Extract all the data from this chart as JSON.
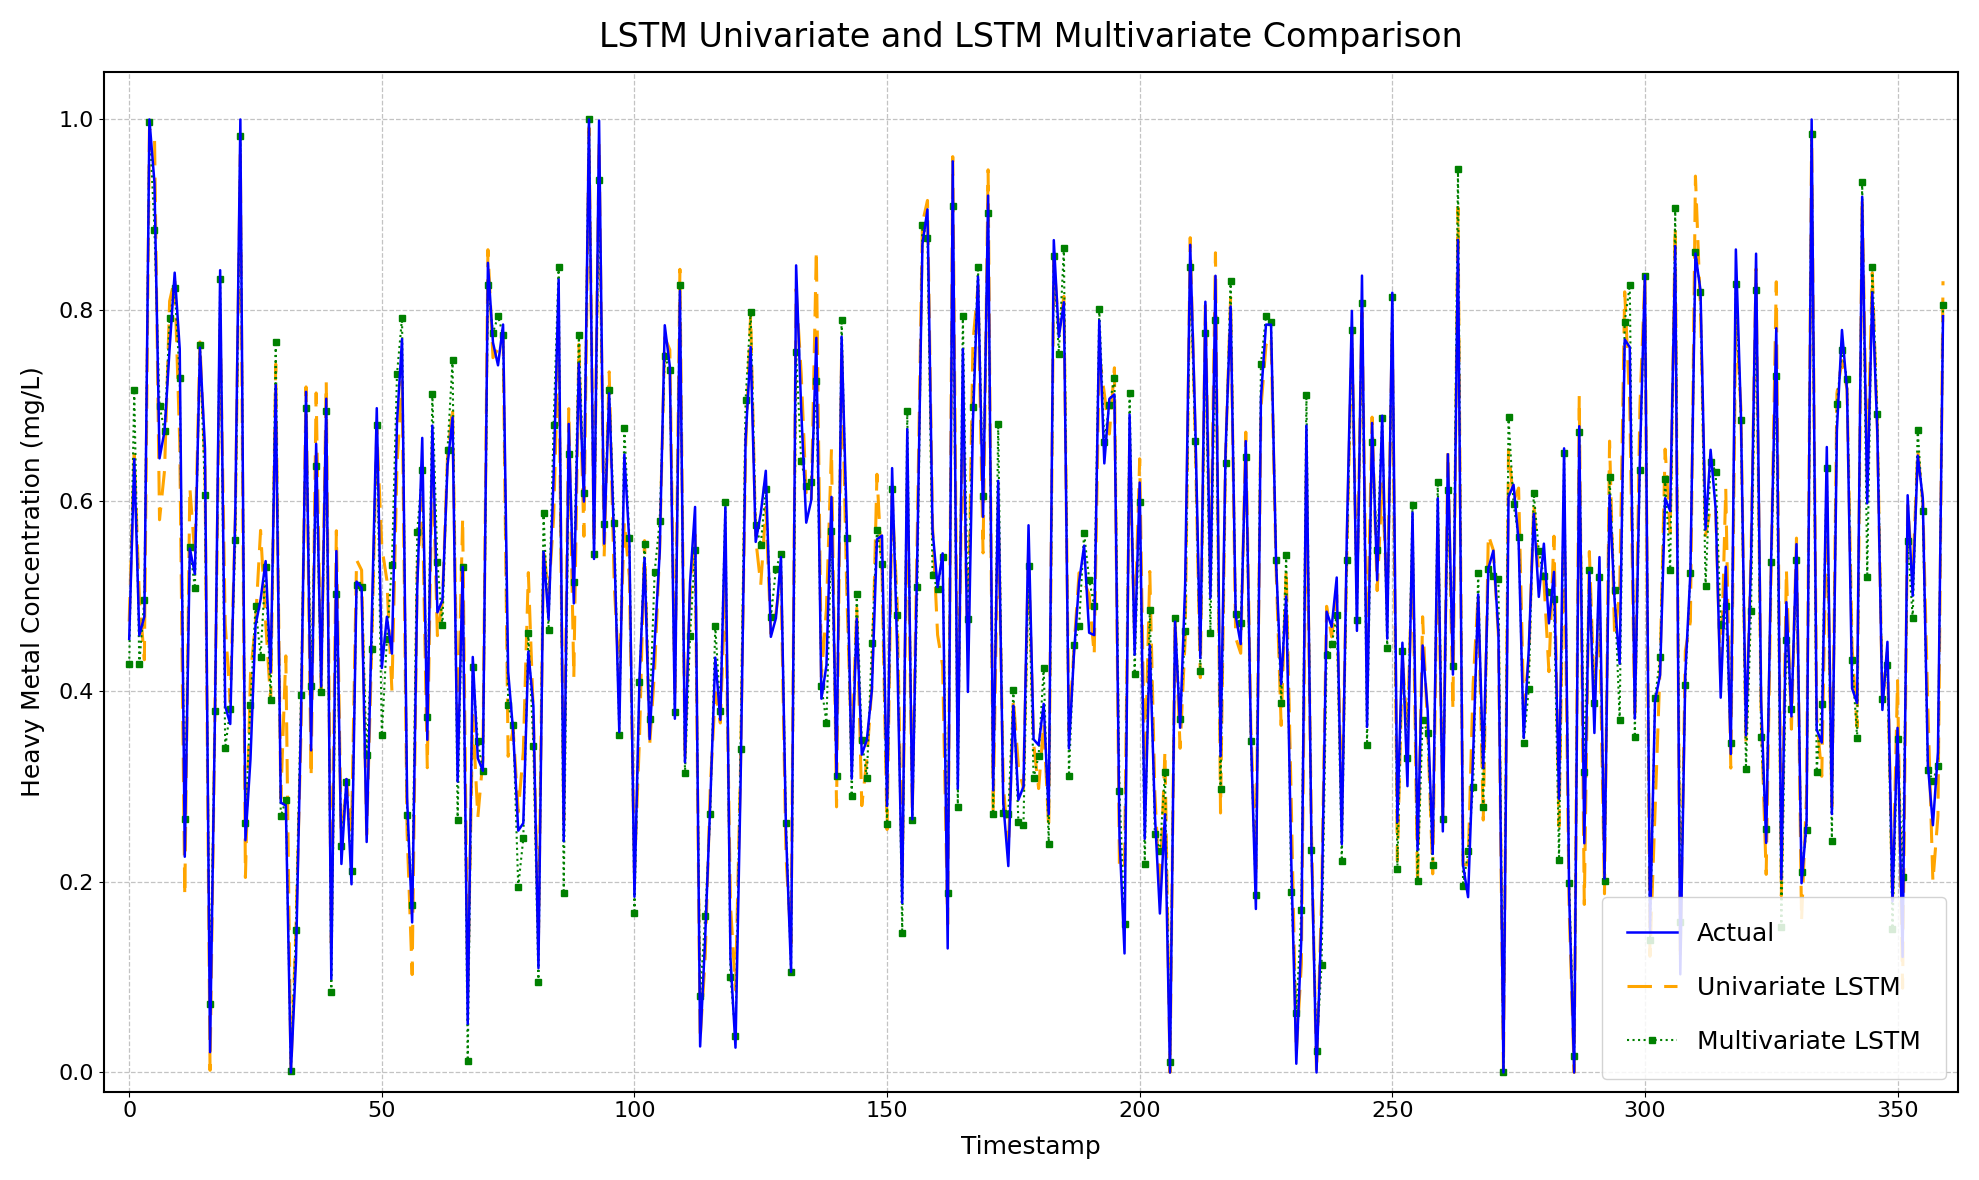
{
  "title": "LSTM Univariate and LSTM Multivariate Comparison",
  "xlabel": "Timestamp",
  "ylabel": "Heavy Metal Concentration (mg/L)",
  "xlim": [
    -5,
    362
  ],
  "ylim": [
    -0.02,
    1.05
  ],
  "yticks": [
    0.0,
    0.2,
    0.4,
    0.6,
    0.8,
    1.0
  ],
  "xticks": [
    0,
    50,
    100,
    150,
    200,
    250,
    300,
    350
  ],
  "actual_color": "#0000FF",
  "univariate_color": "#FFA500",
  "multivariate_color": "#008000",
  "actual_linewidth": 1.8,
  "univariate_linewidth": 2.2,
  "multivariate_linewidth": 1.5,
  "actual_linestyle": "-",
  "univariate_linestyle": "--",
  "multivariate_linestyle": ":",
  "multivariate_marker": "s",
  "multivariate_markersize": 4,
  "grid_color": "#aaaaaa",
  "grid_linestyle": "--",
  "grid_alpha": 0.7,
  "background_color": "#ffffff",
  "title_fontsize": 24,
  "label_fontsize": 18,
  "tick_fontsize": 16,
  "legend_fontsize": 18,
  "legend_loc": "lower right",
  "n_points": 360,
  "seed": 12345
}
